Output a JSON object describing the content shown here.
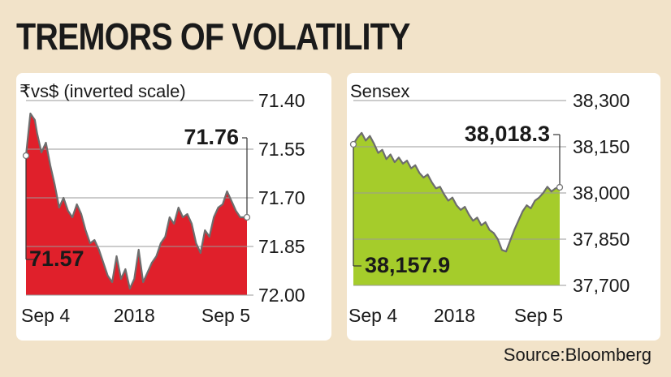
{
  "title": "TREMORS OF VOLATILITY",
  "source": "Source:Bloomberg",
  "colors": {
    "background": "#f2e3c9",
    "left_fill": "#e0202b",
    "right_fill": "#a5cc2b"
  },
  "chart_data": [
    {
      "type": "area",
      "title": "₹vs$ (inverted scale)",
      "inverted": true,
      "ylim": [
        71.4,
        72.0
      ],
      "yticks": [
        "71.40",
        "71.55",
        "71.70",
        "71.85",
        "72.00"
      ],
      "ytick_values": [
        71.4,
        71.55,
        71.7,
        71.85,
        72.0
      ],
      "xticks": [
        "Sep 4",
        "2018",
        "Sep 5"
      ],
      "xtick_positions": [
        0.0,
        0.49,
        0.92
      ],
      "start_label": "71.57",
      "end_label": "71.76",
      "start_value": 71.57,
      "end_value": 71.76,
      "series": [
        {
          "name": "INR per USD",
          "x": [
            0,
            0.02,
            0.04,
            0.05,
            0.07,
            0.09,
            0.11,
            0.13,
            0.15,
            0.17,
            0.19,
            0.21,
            0.23,
            0.25,
            0.27,
            0.29,
            0.31,
            0.33,
            0.35,
            0.37,
            0.39,
            0.41,
            0.43,
            0.45,
            0.47,
            0.49,
            0.51,
            0.53,
            0.55,
            0.57,
            0.59,
            0.61,
            0.63,
            0.65,
            0.67,
            0.69,
            0.71,
            0.73,
            0.75,
            0.77,
            0.79,
            0.81,
            0.83,
            0.85,
            0.87,
            0.89,
            0.91,
            0.93,
            0.95,
            0.97,
            1.0
          ],
          "values": [
            71.57,
            71.44,
            71.46,
            71.5,
            71.56,
            71.53,
            71.6,
            71.66,
            71.73,
            71.7,
            71.74,
            71.76,
            71.72,
            71.75,
            71.8,
            71.84,
            71.83,
            71.86,
            71.9,
            71.94,
            71.96,
            71.88,
            71.95,
            71.92,
            71.98,
            71.95,
            71.86,
            71.96,
            71.93,
            71.9,
            71.88,
            71.84,
            71.82,
            71.76,
            71.78,
            71.73,
            71.76,
            71.75,
            71.78,
            71.84,
            71.87,
            71.8,
            71.82,
            71.76,
            71.73,
            71.72,
            71.68,
            71.71,
            71.74,
            71.76,
            71.76
          ]
        }
      ]
    },
    {
      "type": "area",
      "title": "Sensex",
      "ylim": [
        37700,
        38300
      ],
      "yticks": [
        "38,300",
        "38,150",
        "38,000",
        "37,850",
        "37,700"
      ],
      "ytick_values": [
        38300,
        38150,
        38000,
        37850,
        37700
      ],
      "xticks": [
        "Sep 4",
        "2018",
        "Sep 5"
      ],
      "xtick_positions": [
        0.0,
        0.49,
        0.92
      ],
      "start_label": "38,157.9",
      "end_label": "38,018.3",
      "start_value": 38157.9,
      "end_value": 38018.3,
      "series": [
        {
          "name": "Sensex",
          "x": [
            0,
            0.02,
            0.04,
            0.06,
            0.08,
            0.1,
            0.12,
            0.14,
            0.16,
            0.18,
            0.2,
            0.22,
            0.24,
            0.26,
            0.28,
            0.3,
            0.32,
            0.34,
            0.36,
            0.38,
            0.4,
            0.42,
            0.44,
            0.46,
            0.48,
            0.5,
            0.52,
            0.54,
            0.56,
            0.58,
            0.6,
            0.62,
            0.64,
            0.66,
            0.68,
            0.7,
            0.72,
            0.74,
            0.76,
            0.78,
            0.8,
            0.82,
            0.84,
            0.86,
            0.88,
            0.9,
            0.92,
            0.94,
            0.96,
            0.98,
            1.0
          ],
          "values": [
            38157.9,
            38180,
            38195,
            38170,
            38185,
            38160,
            38130,
            38140,
            38110,
            38125,
            38100,
            38115,
            38095,
            38105,
            38080,
            38090,
            38065,
            38050,
            38060,
            38035,
            38015,
            38020,
            37995,
            37975,
            37985,
            37960,
            37945,
            37955,
            37930,
            37910,
            37920,
            37895,
            37905,
            37880,
            37870,
            37850,
            37815,
            37810,
            37845,
            37880,
            37910,
            37940,
            37960,
            37950,
            37975,
            37985,
            38000,
            38020,
            38005,
            38015,
            38018.3
          ]
        }
      ]
    }
  ]
}
